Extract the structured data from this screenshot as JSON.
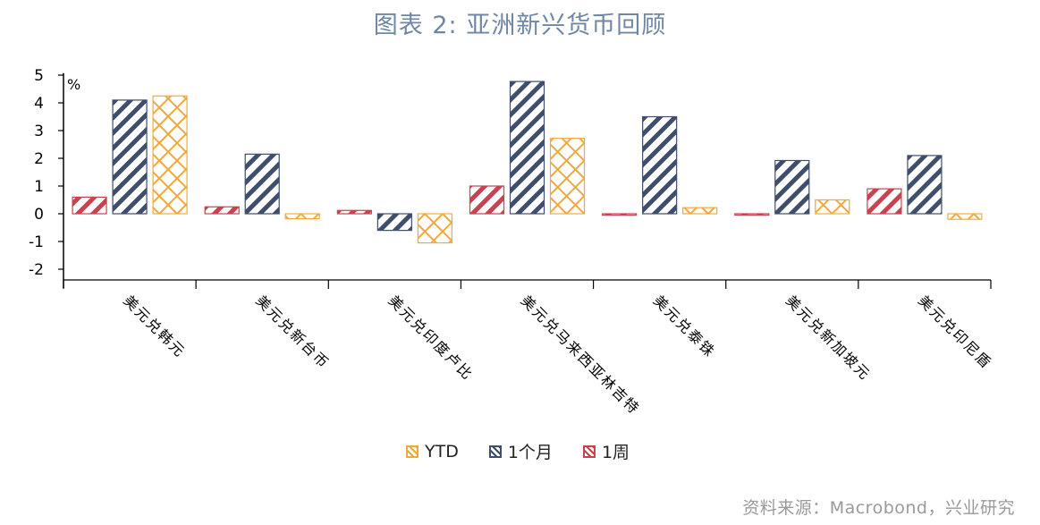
{
  "title": "图表 2:  亚洲新兴货币回顾",
  "source": "资料来源：Macrobond，兴业研究",
  "chart_data": {
    "type": "bar",
    "unit_label": "%",
    "ylim": [
      -2.4,
      5.2
    ],
    "yticks": [
      5,
      4,
      3,
      2,
      1,
      0,
      -1,
      -2
    ],
    "categories": [
      "美元兑韩元",
      "美元兑新台币",
      "美元兑印度卢比",
      "美元兑马来西亚林吉特",
      "美元兑泰铢",
      "美元兑新加坡元",
      "美元兑印尼盾"
    ],
    "series": [
      {
        "name": "1周",
        "color": "#c8424f",
        "pattern": "stripes",
        "values": [
          0.6,
          0.25,
          0.12,
          1.0,
          -0.05,
          -0.03,
          0.9
        ]
      },
      {
        "name": "1个月",
        "color": "#3e4e6c",
        "pattern": "stripes",
        "values": [
          4.1,
          2.15,
          -0.6,
          4.77,
          3.5,
          1.92,
          2.1
        ]
      },
      {
        "name": "YTD",
        "color": "#f2a93b",
        "pattern": "cross",
        "values": [
          4.25,
          -0.18,
          -1.05,
          2.72,
          0.22,
          0.5,
          -0.2
        ]
      }
    ],
    "legend_order": [
      "YTD",
      "1个月",
      "1周"
    ],
    "legend_position": "bottom-center"
  }
}
